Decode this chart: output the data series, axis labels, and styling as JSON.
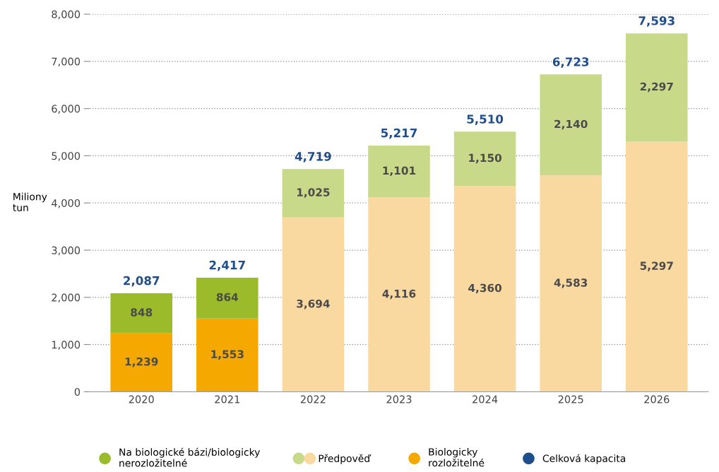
{
  "chart_data": {
    "type": "bar",
    "stacked": true,
    "ylabel": "Miliony\ntun",
    "categories": [
      "2020",
      "2021",
      "2022",
      "2023",
      "2024",
      "2025",
      "2026"
    ],
    "series": [
      {
        "name": "Biologicky\nrozložitelné",
        "color": "#f5a800",
        "values": [
          1239,
          1553,
          null,
          null,
          null,
          null,
          null
        ],
        "value_labels": [
          "1,239",
          "1,553",
          null,
          null,
          null,
          null,
          null
        ]
      },
      {
        "name": "Předpověď",
        "color": "#fad9a0",
        "values": [
          null,
          null,
          3694,
          4116,
          4360,
          4583,
          5297
        ],
        "value_labels": [
          null,
          null,
          "3,694",
          "4,116",
          "4,360",
          "4,583",
          "5,297"
        ]
      },
      {
        "name": "Na biologické bázi/biologicky\nnerozložitelné",
        "color": "#9bbb2a",
        "values": [
          848,
          864,
          null,
          null,
          null,
          null,
          null
        ],
        "value_labels": [
          "848",
          "864",
          null,
          null,
          null,
          null,
          null
        ]
      },
      {
        "color": "#c9d98a",
        "values": [
          null,
          null,
          1025,
          1101,
          1150,
          2140,
          2297
        ],
        "value_labels": [
          null,
          null,
          "1,025",
          "1,101",
          "1,150",
          "2,140",
          "2,297"
        ]
      }
    ],
    "totals": [
      "2,087",
      "2,417",
      "4,719",
      "5,217",
      "5,510",
      "6,723",
      "7,593"
    ],
    "annotations": [
      "Celková kapacita"
    ],
    "grid": "y",
    "legend": "bottom",
    "ylim": [
      0,
      8000
    ],
    "yticks": [
      0,
      {
        "value": 1000,
        "label": "1,000"
      },
      {
        "value": 2000,
        "label": "2,000"
      },
      {
        "value": 3000,
        "label": "3,000"
      },
      {
        "value": 4000,
        "label": "4,000"
      },
      {
        "value": 5000,
        "label": "5,000"
      },
      {
        "value": 6000,
        "label": "6,000"
      },
      {
        "value": 7000,
        "label": "7,000"
      },
      {
        "value": 8000,
        "label": "8,000"
      }
    ]
  }
}
